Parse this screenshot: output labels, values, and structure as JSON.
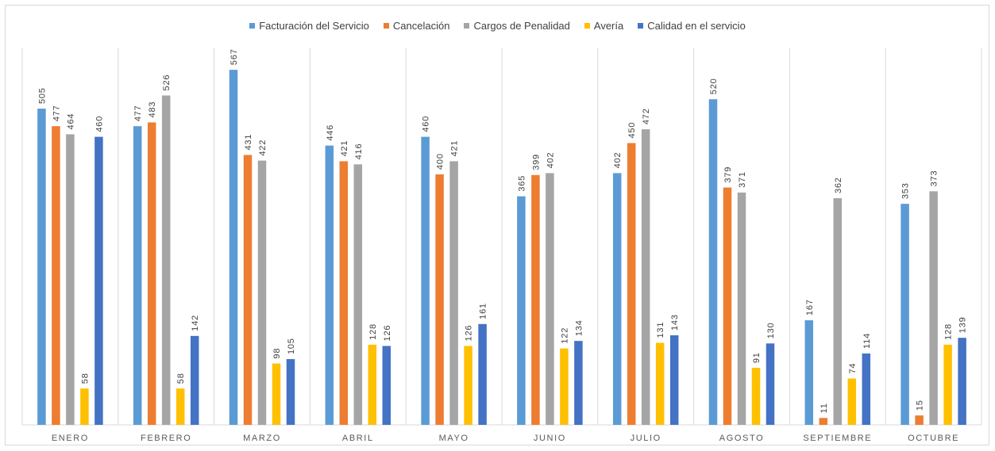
{
  "chart_data": {
    "type": "bar",
    "categories": [
      "ENERO",
      "FEBRERO",
      "MARZO",
      "ABRIL",
      "MAYO",
      "JUNIO",
      "JULIO",
      "AGOSTO",
      "SEPTIEMBRE",
      "OCTUBRE"
    ],
    "series": [
      {
        "name": "Facturación del Servicio",
        "color": "#5b9bd5",
        "values": [
          505,
          477,
          567,
          446,
          460,
          365,
          402,
          520,
          167,
          353
        ]
      },
      {
        "name": "Cancelación",
        "color": "#ed7d31",
        "values": [
          477,
          483,
          431,
          421,
          400,
          399,
          450,
          379,
          11,
          15
        ]
      },
      {
        "name": "Cargos de Penalidad",
        "color": "#a5a5a5",
        "values": [
          464,
          526,
          422,
          416,
          421,
          402,
          472,
          371,
          362,
          373
        ]
      },
      {
        "name": "Avería",
        "color": "#ffc000",
        "values": [
          58,
          58,
          98,
          128,
          126,
          122,
          131,
          91,
          74,
          128
        ]
      },
      {
        "name": "Calidad en el servicio",
        "color": "#4472c4",
        "values": [
          460,
          142,
          105,
          126,
          161,
          134,
          143,
          130,
          114,
          139
        ]
      }
    ],
    "legend_position": "top",
    "grid": "vertical category separators",
    "ylim": [
      0,
      600
    ],
    "data_labels": "rotated, above bars"
  }
}
